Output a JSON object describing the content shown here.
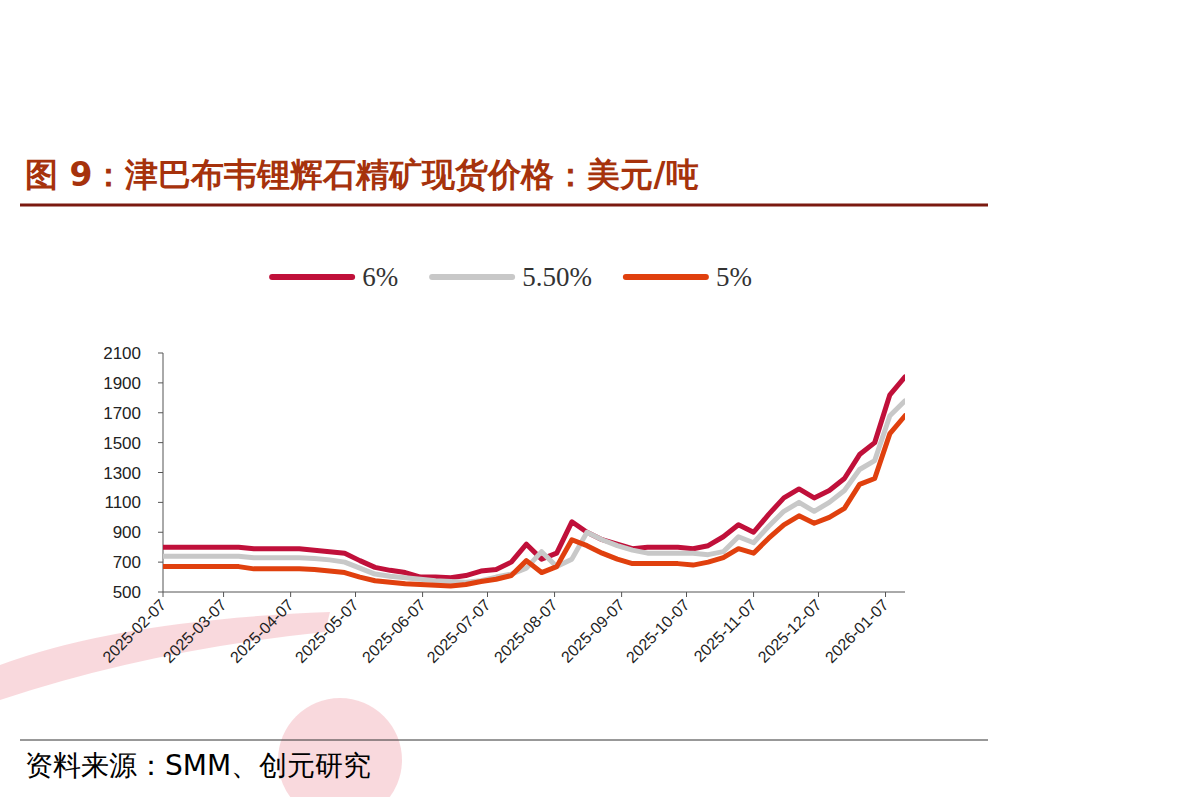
{
  "chart_data": {
    "type": "line",
    "title": "图 9：津巴布韦锂辉石精矿现货价格：美元/吨",
    "source": "资料来源：SMM、创元研究",
    "x": [
      "2025-02-07",
      "2025-02-14",
      "2025-02-21",
      "2025-02-28",
      "2025-03-07",
      "2025-03-14",
      "2025-03-21",
      "2025-03-28",
      "2025-04-04",
      "2025-04-11",
      "2025-04-18",
      "2025-04-25",
      "2025-05-02",
      "2025-05-09",
      "2025-05-16",
      "2025-05-23",
      "2025-05-30",
      "2025-06-06",
      "2025-06-13",
      "2025-06-20",
      "2025-06-27",
      "2025-07-04",
      "2025-07-11",
      "2025-07-18",
      "2025-07-25",
      "2025-08-01",
      "2025-08-08",
      "2025-08-15",
      "2025-08-22",
      "2025-08-29",
      "2025-09-05",
      "2025-09-12",
      "2025-09-19",
      "2025-09-26",
      "2025-10-03",
      "2025-10-10",
      "2025-10-17",
      "2025-10-24",
      "2025-10-31",
      "2025-11-07",
      "2025-11-14",
      "2025-11-21",
      "2025-11-28",
      "2025-12-05",
      "2025-12-12",
      "2025-12-19",
      "2025-12-26",
      "2026-01-02",
      "2026-01-09",
      "2026-01-16"
    ],
    "series": [
      {
        "name": "6%",
        "color": "#C0103A",
        "values": [
          800,
          800,
          800,
          800,
          800,
          800,
          790,
          790,
          790,
          790,
          780,
          770,
          760,
          710,
          665,
          645,
          630,
          600,
          600,
          595,
          610,
          640,
          650,
          700,
          820,
          720,
          760,
          970,
          900,
          850,
          820,
          790,
          800,
          800,
          800,
          790,
          810,
          870,
          950,
          900,
          1020,
          1130,
          1190,
          1130,
          1180,
          1260,
          1420,
          1500,
          1820,
          1940
        ]
      },
      {
        "name": "5.50%",
        "color": "#C8C8C8",
        "values": [
          740,
          740,
          740,
          740,
          740,
          740,
          730,
          730,
          730,
          730,
          725,
          715,
          700,
          660,
          620,
          605,
          595,
          585,
          575,
          570,
          565,
          575,
          600,
          620,
          660,
          770,
          670,
          720,
          900,
          850,
          810,
          780,
          760,
          760,
          760,
          760,
          750,
          770,
          870,
          830,
          940,
          1040,
          1100,
          1040,
          1100,
          1180,
          1320,
          1380,
          1680,
          1780
        ]
      },
      {
        "name": "5%",
        "color": "#E0400E",
        "values": [
          670,
          670,
          670,
          670,
          670,
          670,
          655,
          655,
          655,
          655,
          650,
          640,
          630,
          600,
          575,
          565,
          555,
          550,
          545,
          540,
          550,
          570,
          585,
          610,
          710,
          630,
          670,
          850,
          810,
          760,
          720,
          690,
          690,
          690,
          690,
          680,
          700,
          730,
          790,
          760,
          860,
          950,
          1010,
          960,
          1000,
          1060,
          1220,
          1260,
          1560,
          1680
        ]
      }
    ],
    "xlim": [
      "2025-02-07",
      "2026-01-16"
    ],
    "xticks": [
      "2025-02-07",
      "2025-03-07",
      "2025-04-07",
      "2025-05-07",
      "2025-06-07",
      "2025-07-07",
      "2025-08-07",
      "2025-09-07",
      "2025-10-07",
      "2025-11-07",
      "2025-12-07",
      "2026-01-07"
    ],
    "ylim": [
      500,
      2100
    ],
    "yticks": [
      500,
      700,
      900,
      1100,
      1300,
      1500,
      1700,
      1900,
      2100
    ],
    "grid": false,
    "legend": "top"
  }
}
